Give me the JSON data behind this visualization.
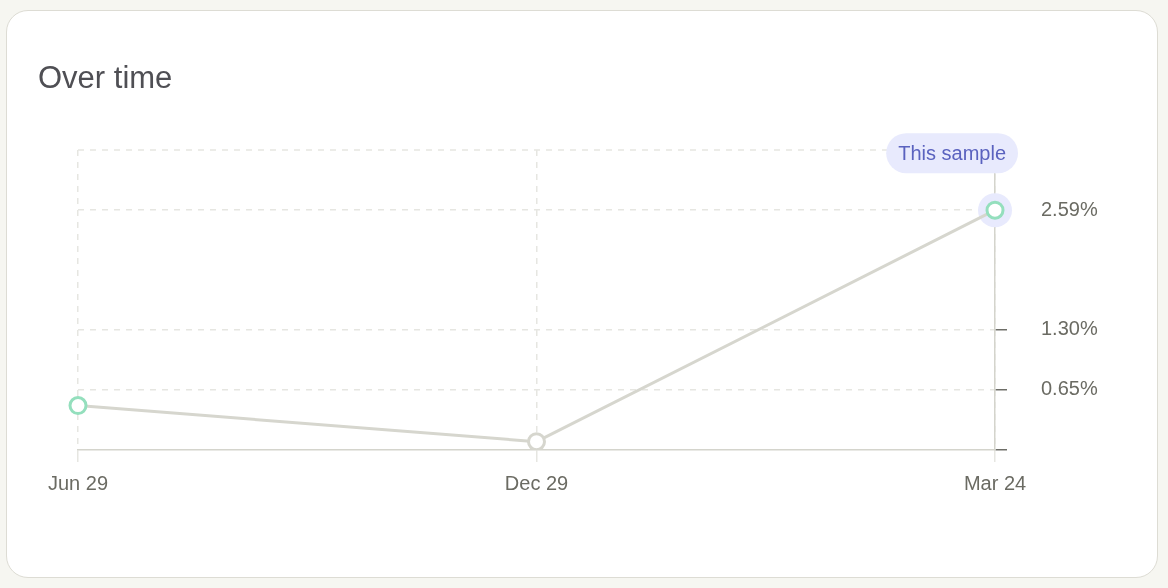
{
  "chart_data": {
    "type": "line",
    "title": "Over time",
    "categories": [
      "Jun 29",
      "Dec 29",
      "Mar 24"
    ],
    "values": [
      0.48,
      0.09,
      2.59
    ],
    "color": "#d6d6ce",
    "colors": [
      "#94dfbd",
      "#d6d6ce",
      "#94dfbd"
    ],
    "ylim": [
      0,
      3.24
    ],
    "yticks": [
      {
        "value": 0,
        "label": null
      },
      {
        "value": 0.65,
        "label": "0.65%"
      },
      {
        "value": 1.3,
        "label": "1.30%"
      },
      {
        "value": 2.59,
        "label": "2.59%"
      }
    ],
    "grid": true,
    "marker": "circle",
    "annotations": [
      {
        "text": "This sample",
        "x": "Mar 24",
        "y": 2.59
      }
    ]
  }
}
